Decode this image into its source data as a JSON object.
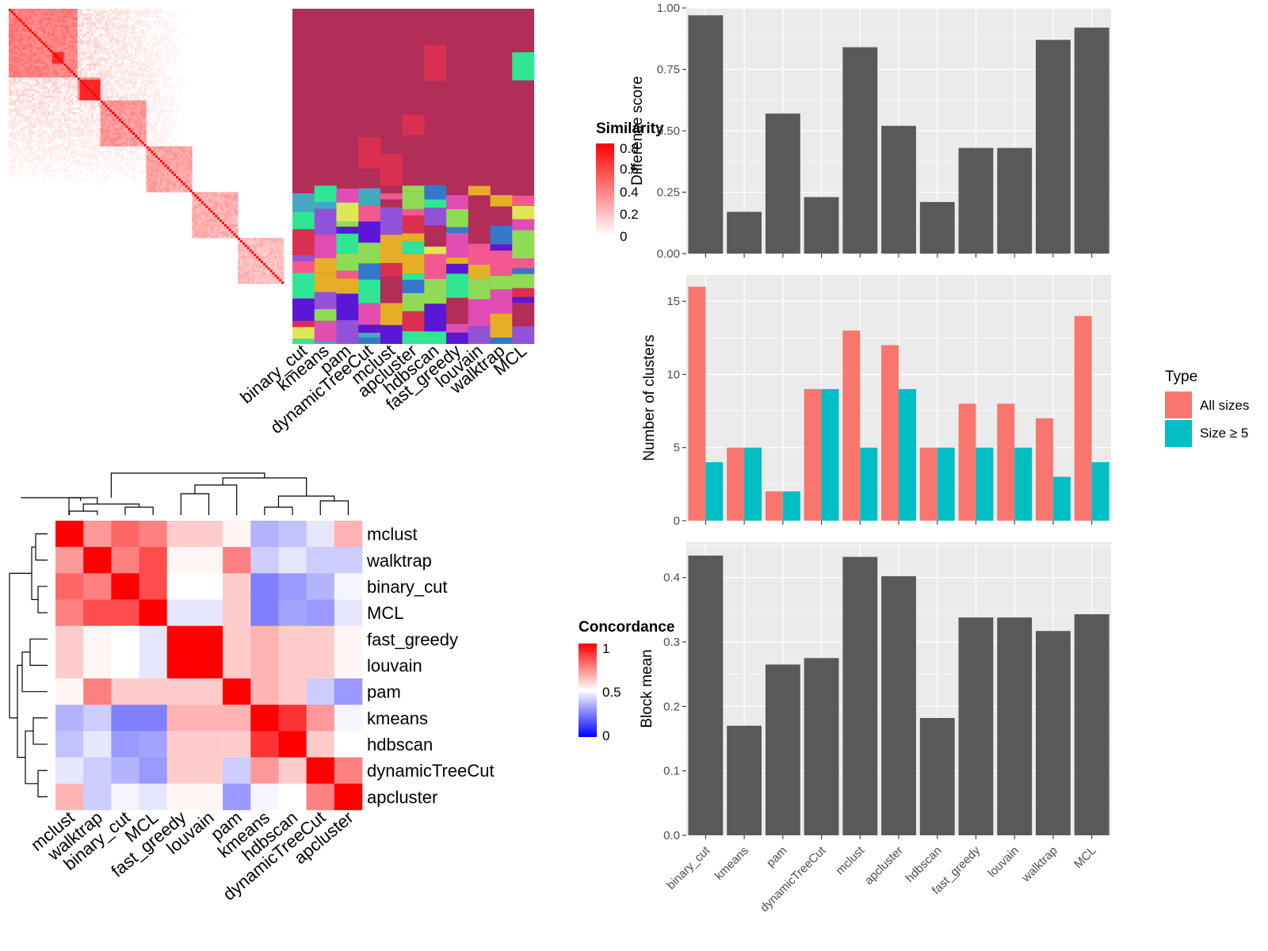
{
  "methods": [
    "binary_cut",
    "kmeans",
    "pam",
    "dynamicTreeCut",
    "mclust",
    "apcluster",
    "hdbscan",
    "fast_greedy",
    "louvain",
    "walktrap",
    "MCL"
  ],
  "similarity_legend": {
    "title": "Similarity",
    "ticks": [
      "0.8",
      "0.6",
      "0.4",
      "0.2",
      "0"
    ]
  },
  "concordance_legend": {
    "title": "Concordance",
    "ticks": [
      "1",
      "0.5",
      "0"
    ]
  },
  "type_legend": {
    "title": "Type",
    "items": [
      "All sizes",
      "Size ≥ 5"
    ],
    "colors": [
      "#F8766D",
      "#00BFC4"
    ]
  },
  "chart_data": [
    {
      "type": "heatmap",
      "name": "similarity",
      "xlabel": "",
      "ylabel": ""
    },
    {
      "type": "heatmap",
      "name": "cluster_assignments",
      "columns": [
        "binary_cut",
        "kmeans",
        "pam",
        "dynamicTreeCut",
        "mclust",
        "apcluster",
        "hdbscan",
        "fast_greedy",
        "louvain",
        "walktrap",
        "MCL"
      ]
    },
    {
      "type": "heatmap",
      "name": "concordance",
      "rows": [
        "mclust",
        "walktrap",
        "binary_cut",
        "MCL",
        "fast_greedy",
        "louvain",
        "pam",
        "kmeans",
        "hdbscan",
        "dynamicTreeCut",
        "apcluster"
      ],
      "columns": [
        "mclust",
        "walktrap",
        "binary_cut",
        "MCL",
        "fast_greedy",
        "louvain",
        "pam",
        "kmeans",
        "hdbscan",
        "dynamicTreeCut",
        "apcluster"
      ],
      "values": [
        [
          1.0,
          0.7,
          0.8,
          0.75,
          0.6,
          0.6,
          0.52,
          0.35,
          0.38,
          0.45,
          0.65
        ],
        [
          0.7,
          1.0,
          0.75,
          0.85,
          0.52,
          0.52,
          0.75,
          0.4,
          0.45,
          0.4,
          0.4
        ],
        [
          0.8,
          0.75,
          1.0,
          0.85,
          0.5,
          0.5,
          0.6,
          0.25,
          0.3,
          0.35,
          0.48
        ],
        [
          0.75,
          0.85,
          0.85,
          1.0,
          0.45,
          0.45,
          0.6,
          0.25,
          0.32,
          0.3,
          0.45
        ],
        [
          0.6,
          0.52,
          0.5,
          0.45,
          1.0,
          1.0,
          0.6,
          0.65,
          0.6,
          0.6,
          0.52
        ],
        [
          0.6,
          0.52,
          0.5,
          0.45,
          1.0,
          1.0,
          0.6,
          0.65,
          0.6,
          0.6,
          0.52
        ],
        [
          0.52,
          0.75,
          0.6,
          0.6,
          0.6,
          0.6,
          1.0,
          0.65,
          0.6,
          0.4,
          0.3
        ],
        [
          0.35,
          0.4,
          0.25,
          0.25,
          0.65,
          0.65,
          0.65,
          1.0,
          0.9,
          0.7,
          0.48
        ],
        [
          0.38,
          0.45,
          0.3,
          0.32,
          0.6,
          0.6,
          0.6,
          0.9,
          1.0,
          0.6,
          0.5
        ],
        [
          0.45,
          0.4,
          0.35,
          0.3,
          0.6,
          0.6,
          0.4,
          0.7,
          0.6,
          1.0,
          0.75
        ],
        [
          0.65,
          0.4,
          0.48,
          0.45,
          0.52,
          0.52,
          0.3,
          0.48,
          0.5,
          0.75,
          1.0
        ]
      ]
    },
    {
      "type": "bar",
      "name": "difference_score",
      "categories": [
        "binary_cut",
        "kmeans",
        "pam",
        "dynamicTreeCut",
        "mclust",
        "apcluster",
        "hdbscan",
        "fast_greedy",
        "louvain",
        "walktrap",
        "MCL"
      ],
      "values": [
        0.97,
        0.17,
        0.57,
        0.23,
        0.84,
        0.52,
        0.21,
        0.43,
        0.43,
        0.87,
        0.92
      ],
      "ylabel": "Difference score",
      "ylim": [
        0,
        1.0
      ],
      "yticks": [
        "0.00",
        "0.25",
        "0.50",
        "0.75",
        "1.00"
      ]
    },
    {
      "type": "bar",
      "name": "number_of_clusters",
      "categories": [
        "binary_cut",
        "kmeans",
        "pam",
        "dynamicTreeCut",
        "mclust",
        "apcluster",
        "hdbscan",
        "fast_greedy",
        "louvain",
        "walktrap",
        "MCL"
      ],
      "series": [
        {
          "name": "All sizes",
          "values": [
            16,
            5,
            2,
            9,
            13,
            12,
            5,
            8,
            8,
            7,
            14
          ]
        },
        {
          "name": "Size ≥ 5",
          "values": [
            4,
            5,
            2,
            9,
            5,
            9,
            5,
            5,
            5,
            3,
            4
          ]
        }
      ],
      "ylabel": "Number of clusters",
      "ylim": [
        0,
        16.8
      ],
      "yticks": [
        "0",
        "5",
        "10",
        "15"
      ]
    },
    {
      "type": "bar",
      "name": "block_mean",
      "categories": [
        "binary_cut",
        "kmeans",
        "pam",
        "dynamicTreeCut",
        "mclust",
        "apcluster",
        "hdbscan",
        "fast_greedy",
        "louvain",
        "walktrap",
        "MCL"
      ],
      "values": [
        0.434,
        0.17,
        0.265,
        0.275,
        0.432,
        0.402,
        0.182,
        0.338,
        0.338,
        0.317,
        0.343
      ],
      "ylabel": "Block mean",
      "ylim": [
        0,
        0.455
      ],
      "yticks": [
        "0.0",
        "0.1",
        "0.2",
        "0.3",
        "0.4"
      ]
    }
  ]
}
